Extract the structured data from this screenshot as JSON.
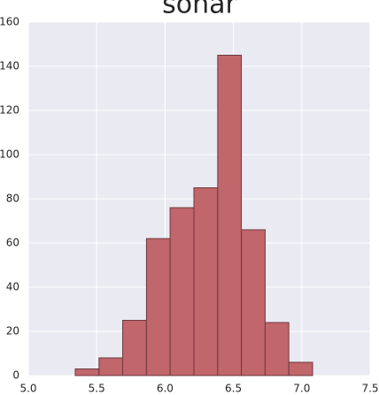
{
  "chart_data": {
    "type": "histogram",
    "title": "sonar",
    "bins": [
      5.343,
      5.517,
      5.69,
      5.864,
      6.037,
      6.211,
      6.385,
      6.558,
      6.732,
      6.905,
      7.079
    ],
    "values": [
      3,
      8,
      25,
      62,
      76,
      85,
      145,
      66,
      24,
      6
    ],
    "color": "#c1666b",
    "edgecolor": "#6b3a3e",
    "background": "#eaeaf2",
    "grid": true,
    "xlim": [
      5.0,
      7.5
    ],
    "xticks": [
      {
        "value": 5.0,
        "label": "5.0"
      },
      {
        "value": 5.5,
        "label": "5.5"
      },
      {
        "value": 6.0,
        "label": "6.0"
      },
      {
        "value": 6.5,
        "label": "6.5"
      },
      {
        "value": 7.0,
        "label": "7.0"
      },
      {
        "value": 7.5,
        "label": "7.5"
      }
    ],
    "ylim": [
      0,
      160
    ],
    "yticks": [
      0,
      20,
      40,
      60,
      80,
      100,
      120,
      140,
      160
    ]
  }
}
